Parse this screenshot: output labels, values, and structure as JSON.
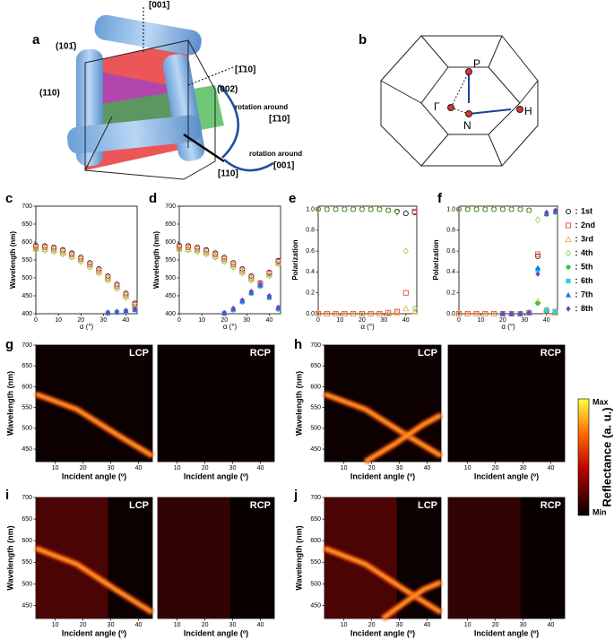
{
  "panel_labels": [
    "a",
    "b",
    "c",
    "d",
    "e",
    "f",
    "g",
    "h",
    "i",
    "j"
  ],
  "diagram_a": {
    "labels": [
      "[001]",
      "(101̄)",
      "[1̄10]",
      "(110)",
      "(002)",
      "rotation around",
      "[1̄10]",
      "rotation around",
      "[001]",
      "[110]"
    ]
  },
  "diagram_b": {
    "labels": [
      "P",
      "Γ",
      "N",
      "H"
    ]
  },
  "colorbar": {
    "label": "Reflectance (a. u.)",
    "max_label": "Max",
    "min_label": "Min"
  },
  "chart_data": [
    {
      "type": "scatter",
      "x_label": "α (°)",
      "y_label": "Wavelength (nm)",
      "x": [
        0,
        4,
        8,
        12,
        16,
        20,
        24,
        28,
        32,
        36,
        40,
        44
      ],
      "xlim": [
        0,
        45
      ],
      "xticks": [
        0,
        10,
        20,
        30,
        40
      ],
      "ylim": [
        400,
        700
      ],
      "yticks": [
        400,
        450,
        500,
        550,
        600,
        650,
        700
      ],
      "series": [
        {
          "color": "#000000",
          "marker": "circle-open",
          "values": [
            590,
            589,
            585,
            578,
            569,
            557,
            542,
            525,
            505,
            482,
            457,
            429
          ]
        },
        {
          "color": "#e8352a",
          "marker": "square-open",
          "values": [
            586,
            585,
            581,
            574,
            565,
            553,
            538,
            521,
            501,
            478,
            453,
            425
          ]
        },
        {
          "color": "#f2a33a",
          "marker": "triangle-open",
          "values": [
            582,
            581,
            577,
            570,
            561,
            549,
            534,
            517,
            497,
            474,
            449,
            421
          ]
        },
        {
          "color": "#8fd14f",
          "marker": "diamond-open",
          "values": [
            578,
            577,
            573,
            566,
            557,
            545,
            530,
            513,
            493,
            470,
            445,
            417
          ]
        },
        {
          "color": "#2ecc40",
          "marker": "circle",
          "values": [
            null,
            null,
            null,
            null,
            null,
            null,
            null,
            null,
            401,
            403,
            406,
            410
          ]
        },
        {
          "color": "#22d3e6",
          "marker": "square",
          "values": [
            null,
            null,
            null,
            null,
            null,
            null,
            null,
            null,
            402,
            404,
            407,
            411
          ]
        },
        {
          "color": "#1e6fe0",
          "marker": "triangle",
          "values": [
            null,
            null,
            null,
            null,
            null,
            null,
            null,
            null,
            403,
            405,
            408,
            412
          ]
        },
        {
          "color": "#7a3fc4",
          "marker": "diamond",
          "values": [
            null,
            null,
            null,
            null,
            null,
            null,
            null,
            null,
            404,
            406,
            409,
            413
          ]
        }
      ]
    },
    {
      "type": "scatter",
      "x_label": "α (°)",
      "y_label": "Wavelength (nm)",
      "x": [
        0,
        4,
        8,
        12,
        16,
        20,
        24,
        28,
        32,
        36,
        40,
        44
      ],
      "xlim": [
        0,
        45
      ],
      "xticks": [
        0,
        10,
        20,
        30,
        40
      ],
      "ylim": [
        400,
        700
      ],
      "yticks": [
        400,
        450,
        500,
        550,
        600,
        650,
        700
      ],
      "series": [
        {
          "color": "#000000",
          "marker": "circle-open",
          "values": [
            590,
            589,
            585,
            578,
            569,
            557,
            542,
            525,
            505,
            486,
            515,
            548
          ]
        },
        {
          "color": "#e8352a",
          "marker": "square-open",
          "values": [
            586,
            585,
            581,
            574,
            565,
            553,
            538,
            521,
            501,
            484,
            512,
            545
          ]
        },
        {
          "color": "#f2a33a",
          "marker": "triangle-open",
          "values": [
            582,
            581,
            577,
            570,
            561,
            549,
            534,
            517,
            497,
            482,
            509,
            542
          ]
        },
        {
          "color": "#8fd14f",
          "marker": "diamond-open",
          "values": [
            578,
            577,
            573,
            566,
            557,
            545,
            530,
            513,
            493,
            480,
            506,
            539
          ]
        },
        {
          "color": "#2ecc40",
          "marker": "circle",
          "values": [
            null,
            null,
            null,
            null,
            null,
            400,
            410,
            432,
            456,
            476,
            444,
            412
          ]
        },
        {
          "color": "#22d3e6",
          "marker": "square",
          "values": [
            null,
            null,
            null,
            null,
            null,
            401,
            411,
            434,
            458,
            478,
            446,
            414
          ]
        },
        {
          "color": "#1e6fe0",
          "marker": "triangle",
          "values": [
            null,
            null,
            null,
            null,
            null,
            402,
            413,
            436,
            460,
            480,
            448,
            416
          ]
        },
        {
          "color": "#7a3fc4",
          "marker": "diamond",
          "values": [
            null,
            null,
            null,
            null,
            null,
            403,
            415,
            438,
            462,
            482,
            450,
            418
          ]
        }
      ]
    },
    {
      "type": "scatter",
      "x_label": "α (°)",
      "y_label": "Polarization",
      "x": [
        0,
        4,
        8,
        12,
        16,
        20,
        24,
        28,
        32,
        36,
        40,
        44
      ],
      "xlim": [
        0,
        45
      ],
      "xticks": [
        0,
        10,
        20,
        30,
        40
      ],
      "ylim": [
        0,
        1.03
      ],
      "yticks": [
        {
          "value": 0,
          "label": "0.0"
        },
        0.2,
        0.4,
        0.6,
        0.8,
        {
          "value": 1,
          "label": "1.0"
        }
      ],
      "series": [
        {
          "color": "#000000",
          "marker": "circle-open",
          "values": [
            1,
            1,
            1,
            1,
            1,
            1,
            1,
            1,
            0.99,
            0.98,
            0.96,
            0.97
          ]
        },
        {
          "color": "#e8352a",
          "marker": "square-open",
          "values": [
            0,
            0,
            0,
            0,
            0,
            0,
            0,
            0,
            0.01,
            0.02,
            0.2,
            0.98
          ]
        },
        {
          "color": "#f2a33a",
          "marker": "triangle-open",
          "values": [
            0,
            0,
            0,
            0,
            0,
            0,
            0,
            0,
            0,
            0.01,
            0.05,
            0.02
          ]
        },
        {
          "color": "#8fd14f",
          "marker": "diamond-open",
          "values": [
            1,
            1,
            1,
            1,
            1,
            1,
            1,
            1,
            0.99,
            0.97,
            0.6,
            0.05
          ]
        }
      ]
    },
    {
      "type": "scatter",
      "x_label": "α (°)",
      "y_label": "Polarization",
      "x": [
        0,
        4,
        8,
        12,
        16,
        20,
        24,
        28,
        32,
        36,
        40,
        44
      ],
      "xlim": [
        0,
        45
      ],
      "xticks": [
        0,
        10,
        20,
        30,
        40
      ],
      "ylim": [
        0,
        1.03
      ],
      "yticks": [
        {
          "value": 0,
          "label": "0.0"
        },
        0.2,
        0.4,
        0.6,
        0.8,
        {
          "value": 1,
          "label": "1.0"
        }
      ],
      "series": [
        {
          "name": "1st",
          "color": "#000000",
          "marker": "circle-open",
          "values": [
            1,
            1,
            1,
            1,
            1,
            1,
            1,
            1,
            0.99,
            0.55,
            0.02,
            0.01
          ]
        },
        {
          "name": "2nd",
          "color": "#e8352a",
          "marker": "square-open",
          "values": [
            0,
            0,
            0,
            0,
            0,
            0,
            0,
            0,
            0.01,
            0.57,
            0.03,
            0.02
          ]
        },
        {
          "name": "3rd",
          "color": "#f2a33a",
          "marker": "triangle-open",
          "values": [
            0,
            0,
            0,
            0,
            0,
            0,
            0,
            0,
            0.01,
            0.12,
            0.02,
            0.01
          ]
        },
        {
          "name": "4th",
          "color": "#8fd14f",
          "marker": "diamond-open",
          "values": [
            1,
            1,
            1,
            1,
            1,
            1,
            1,
            1,
            0.99,
            0.9,
            0.04,
            0.02
          ]
        },
        {
          "name": "5th",
          "color": "#2ecc40",
          "marker": "circle",
          "values": [
            null,
            null,
            null,
            null,
            null,
            0,
            0,
            0,
            0.01,
            0.1,
            0.95,
            0.97
          ]
        },
        {
          "name": "6th",
          "color": "#22d3e6",
          "marker": "square",
          "values": [
            null,
            null,
            null,
            null,
            null,
            0,
            0,
            0,
            0.01,
            0.42,
            0.03,
            0.02
          ]
        },
        {
          "name": "7th",
          "color": "#1e6fe0",
          "marker": "triangle",
          "values": [
            null,
            null,
            null,
            null,
            null,
            0,
            0,
            0,
            0.01,
            0.44,
            0.96,
            0.98
          ]
        },
        {
          "name": "8th",
          "color": "#7a3fc4",
          "marker": "diamond",
          "values": [
            null,
            null,
            null,
            null,
            null,
            0,
            0,
            0,
            0.01,
            0.38,
            0.97,
            0.99
          ]
        }
      ]
    },
    {
      "type": "heatmap",
      "titles": [
        "LCP",
        "RCP"
      ],
      "x_label": "Incident angle (º)",
      "y_label": "Wavelength (nm)",
      "xlim": [
        3,
        45
      ],
      "xticks": [
        10,
        20,
        30,
        40
      ],
      "ylim": [
        420,
        700
      ],
      "yticks": [
        450,
        500,
        550,
        600,
        650,
        700
      ]
    },
    {
      "type": "heatmap",
      "titles": [
        "LCP",
        "RCP"
      ],
      "x_label": "Incident angle (º)",
      "y_label": "Wavelength (nm)",
      "xlim": [
        3,
        45
      ],
      "xticks": [
        10,
        20,
        30,
        40
      ],
      "ylim": [
        420,
        700
      ],
      "yticks": [
        450,
        500,
        550,
        600,
        650,
        700
      ]
    },
    {
      "type": "heatmap",
      "titles": [
        "LCP",
        "RCP"
      ],
      "x_label": "Incident angle (º)",
      "y_label": "Wavelength (nm)",
      "xlim": [
        3,
        45
      ],
      "xticks": [
        10,
        20,
        30,
        40
      ],
      "ylim": [
        420,
        700
      ],
      "yticks": [
        450,
        500,
        550,
        600,
        650,
        700
      ]
    },
    {
      "type": "heatmap",
      "titles": [
        "LCP",
        "RCP"
      ],
      "x_label": "Incident angle (º)",
      "y_label": "Wavelength (nm)",
      "xlim": [
        3,
        45
      ],
      "xticks": [
        10,
        20,
        30,
        40
      ],
      "ylim": [
        420,
        700
      ],
      "yticks": [
        450,
        500,
        550,
        600,
        650,
        700
      ]
    }
  ]
}
